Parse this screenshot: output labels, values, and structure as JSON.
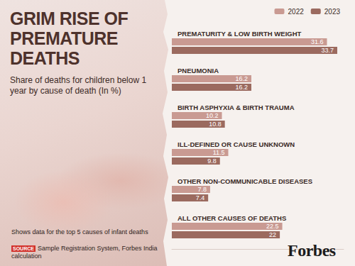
{
  "chart_data": {
    "type": "bar",
    "orientation": "horizontal",
    "title": "GRIM RISE OF PREMATURE DEATHS",
    "subtitle": "Share of deaths for children below 1 year by cause of death (In %)",
    "note": "Shows data for the top 5 causes of infant deaths",
    "source_label": "SOURCE",
    "source": "Sample Registration System, Forbes India calculation",
    "logo": "Forbes",
    "categories": [
      "PREMATURITY & LOW BIRTH WEIGHT",
      "PNEUMONIA",
      "BIRTH ASPHYXIA & BIRTH TRAUMA",
      "ILL-DEFINED OR CAUSE UNKNOWN",
      "OTHER NON-COMMUNICABLE DISEASES",
      "ALL OTHER CAUSES OF DEATHS"
    ],
    "series": [
      {
        "name": "2022",
        "color": "#c99a92",
        "values": [
          31.6,
          16.2,
          10.2,
          11.5,
          7.8,
          22.5
        ]
      },
      {
        "name": "2023",
        "color": "#9b6a5f",
        "values": [
          33.7,
          16.2,
          10.8,
          9.8,
          7.4,
          22
        ]
      }
    ],
    "xlim": [
      0,
      35
    ],
    "legend": "top-right",
    "data_labels": true,
    "tick_labels": "y",
    "grid": false
  }
}
